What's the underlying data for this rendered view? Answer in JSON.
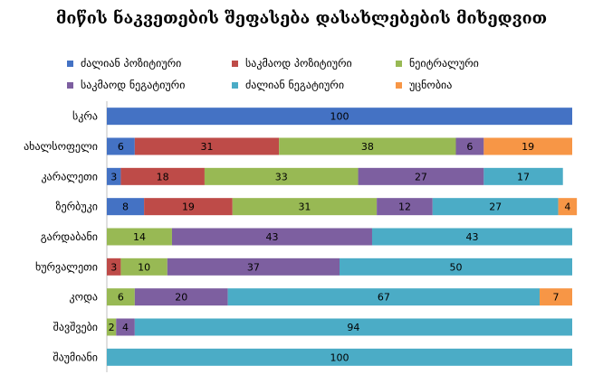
{
  "chart_data": {
    "type": "bar",
    "orientation": "horizontal",
    "stacked": "percent",
    "title": "მიწის ნაკვეთების შეფასება დასახლებების მიხედვით",
    "legend_position": "top",
    "categories": [
      "სკრა",
      "ახალსოფელი",
      "კარალეთი",
      "ზერბუკი",
      "გარდაბანი",
      "ხურვალეთი",
      "კოდა",
      "შავშვები",
      "შაუმიანი"
    ],
    "series": [
      {
        "name": "ძალიან პოზიტიური",
        "color": "#4472c4",
        "values": [
          100,
          6,
          3,
          8,
          0,
          0,
          0,
          0,
          0
        ]
      },
      {
        "name": "საკმაოდ პოზიტიური",
        "color": "#be4b48",
        "values": [
          0,
          31,
          18,
          19,
          0,
          3,
          0,
          0,
          0
        ]
      },
      {
        "name": "ნეიტრალური",
        "color": "#98b954",
        "values": [
          0,
          38,
          33,
          31,
          14,
          10,
          6,
          2,
          0
        ]
      },
      {
        "name": "საკმაოდ ნეგატიური",
        "color": "#7d5fa0",
        "values": [
          0,
          6,
          27,
          12,
          43,
          37,
          20,
          4,
          0
        ]
      },
      {
        "name": "ძალიან ნეგატიური",
        "color": "#4bacc6",
        "values": [
          0,
          0,
          17,
          27,
          43,
          50,
          67,
          94,
          100
        ]
      },
      {
        "name": "უცნობია",
        "color": "#f79646",
        "values": [
          0,
          19,
          0,
          4,
          0,
          0,
          7,
          0,
          0
        ]
      }
    ],
    "xlim": [
      0,
      100
    ],
    "grid": false
  }
}
